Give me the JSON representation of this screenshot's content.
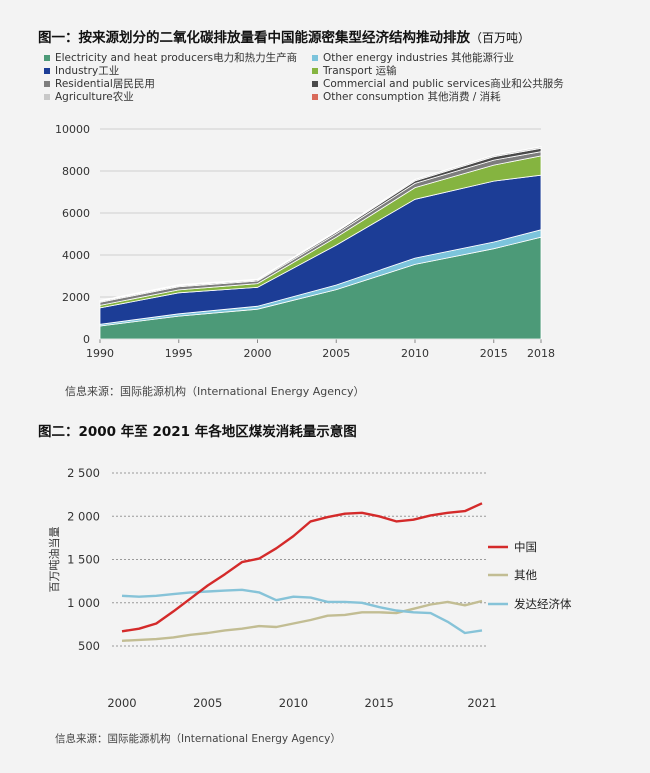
{
  "figure1": {
    "title": "图一：按来源划分的二氧化碳排放量看中国能源密集型经济结构推动排放",
    "unit": "（百万吨）",
    "source": "信息来源：国际能源机构（International Energy Agency）"
  },
  "figure2": {
    "title": "图二：2000 年至 2021 年各地区煤炭消耗量示意图",
    "source": "信息来源：国际能源机构（International Energy Agency）"
  },
  "colors": {
    "electricity": "#4c9a78",
    "other_energy": "#7cc4dc",
    "industry": "#1c3d96",
    "transport": "#85b440",
    "residential": "#7d7d7d",
    "commercial": "#4a4a4a",
    "agriculture": "#c8c8c8",
    "other_consumption": "#d96a5a",
    "china": "#d42a2a",
    "other": "#c2bd93",
    "developed": "#86c3d8"
  },
  "chart_data": [
    {
      "type": "area",
      "stacked": true,
      "x": [
        1990,
        1995,
        2000,
        2005,
        2010,
        2015,
        2018
      ],
      "ylim": [
        0,
        10000
      ],
      "yticks": [
        "0",
        "2000",
        "4000",
        "6000",
        "8000",
        "10000"
      ],
      "xticks": [
        "1990",
        "1995",
        "2000",
        "2005",
        "2010",
        "2015",
        "2018"
      ],
      "grid": true,
      "legend_position": "top",
      "series": [
        {
          "name": "Electricity and heat producers电力和热力生产商",
          "key": "electricity",
          "values": [
            620,
            1090,
            1420,
            2350,
            3550,
            4300,
            4850
          ]
        },
        {
          "name": "Other energy industries 其他能源行业",
          "key": "other_energy",
          "values": [
            80,
            110,
            140,
            220,
            300,
            320,
            350
          ]
        },
        {
          "name": "Industry工业",
          "key": "industry",
          "values": [
            780,
            1000,
            900,
            1900,
            2800,
            2900,
            2600
          ]
        },
        {
          "name": "Transport 运输",
          "key": "transport",
          "values": [
            120,
            140,
            180,
            380,
            560,
            760,
            920
          ]
        },
        {
          "name": "Residential居民民用",
          "key": "residential",
          "values": [
            150,
            150,
            120,
            160,
            200,
            240,
            200
          ]
        },
        {
          "name": "Commercial and public services商业和公共服务",
          "key": "commercial",
          "values": [
            40,
            50,
            50,
            80,
            120,
            160,
            160
          ]
        },
        {
          "name": "Agriculture农业",
          "key": "agriculture",
          "values": [
            40,
            40,
            30,
            50,
            60,
            70,
            70
          ]
        },
        {
          "name": "Other consumption 其他消费 / 消耗",
          "key": "other_consumption",
          "values": [
            10,
            10,
            10,
            10,
            10,
            10,
            10
          ]
        }
      ]
    },
    {
      "type": "line",
      "ylabel": "百万吨油当量",
      "x": [
        2000,
        2001,
        2002,
        2003,
        2004,
        2005,
        2006,
        2007,
        2008,
        2009,
        2010,
        2011,
        2012,
        2013,
        2014,
        2015,
        2016,
        2017,
        2018,
        2019,
        2020,
        2021
      ],
      "xticks": [
        "2000",
        "2005",
        "2010",
        "2015",
        "2021"
      ],
      "yticks": [
        "500",
        "1 000",
        "1 500",
        "2 000",
        "2 500"
      ],
      "ylim": [
        450,
        2550
      ],
      "grid": true,
      "legend_position": "right",
      "series": [
        {
          "name": "中国",
          "key": "china",
          "values": [
            670,
            700,
            760,
            900,
            1050,
            1200,
            1330,
            1470,
            1510,
            1630,
            1770,
            1940,
            1990,
            2030,
            2040,
            2000,
            1940,
            1960,
            2010,
            2040,
            2060,
            2150
          ]
        },
        {
          "name": "其他",
          "key": "other",
          "values": [
            560,
            570,
            580,
            600,
            630,
            650,
            680,
            700,
            730,
            720,
            760,
            800,
            850,
            860,
            890,
            890,
            880,
            930,
            980,
            1010,
            970,
            1020
          ]
        },
        {
          "name": "发达经济体",
          "key": "developed",
          "values": [
            1080,
            1070,
            1080,
            1100,
            1120,
            1130,
            1140,
            1150,
            1120,
            1030,
            1070,
            1060,
            1010,
            1010,
            1000,
            950,
            910,
            890,
            880,
            780,
            650,
            680
          ]
        }
      ]
    }
  ]
}
